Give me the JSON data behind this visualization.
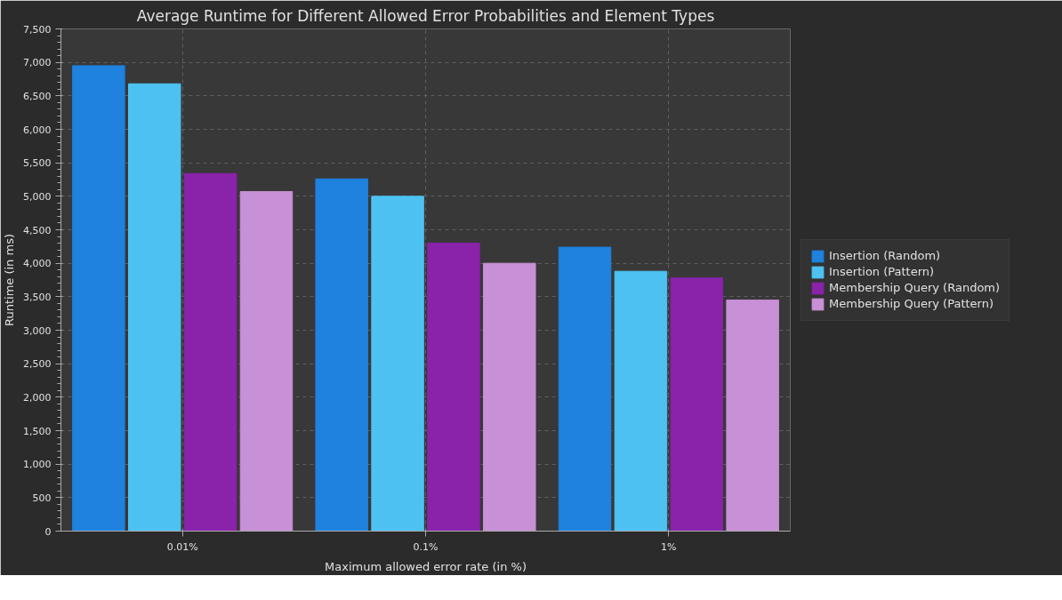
{
  "chart_data": {
    "type": "bar",
    "title": "Average Runtime for Different Allowed Error Probabilities and Element Types",
    "xlabel": "Maximum allowed error rate (in %)",
    "ylabel": "Runtime (in ms)",
    "categories": [
      "0.01%",
      "0.1%",
      "1%"
    ],
    "series": [
      {
        "name": "Insertion (Random)",
        "color": "#1e82de",
        "values": [
          6950,
          5260,
          4240
        ]
      },
      {
        "name": "Insertion (Pattern)",
        "color": "#4dc2f2",
        "values": [
          6680,
          5000,
          3880
        ]
      },
      {
        "name": "Membership Query (Random)",
        "color": "#8a22aa",
        "values": [
          5340,
          4300,
          3780
        ]
      },
      {
        "name": "Membership Query (Pattern)",
        "color": "#c890d6",
        "values": [
          5070,
          4000,
          3450
        ]
      }
    ],
    "ylim": [
      0,
      7500
    ],
    "yticks": [
      {
        "value": 0,
        "label": "0"
      },
      {
        "value": 500,
        "label": "500"
      },
      {
        "value": 1000,
        "label": "1,000"
      },
      {
        "value": 1500,
        "label": "1,500"
      },
      {
        "value": 2000,
        "label": "2,000"
      },
      {
        "value": 2500,
        "label": "2,500"
      },
      {
        "value": 3000,
        "label": "3,000"
      },
      {
        "value": 3500,
        "label": "3,500"
      },
      {
        "value": 4000,
        "label": "4,000"
      },
      {
        "value": 4500,
        "label": "4,500"
      },
      {
        "value": 5000,
        "label": "5,000"
      },
      {
        "value": 5500,
        "label": "5,500"
      },
      {
        "value": 6000,
        "label": "6,000"
      },
      {
        "value": 6500,
        "label": "6,500"
      },
      {
        "value": 7000,
        "label": "7,000"
      },
      {
        "value": 7500,
        "label": "7,500"
      }
    ],
    "grid": true,
    "legend": "right"
  }
}
